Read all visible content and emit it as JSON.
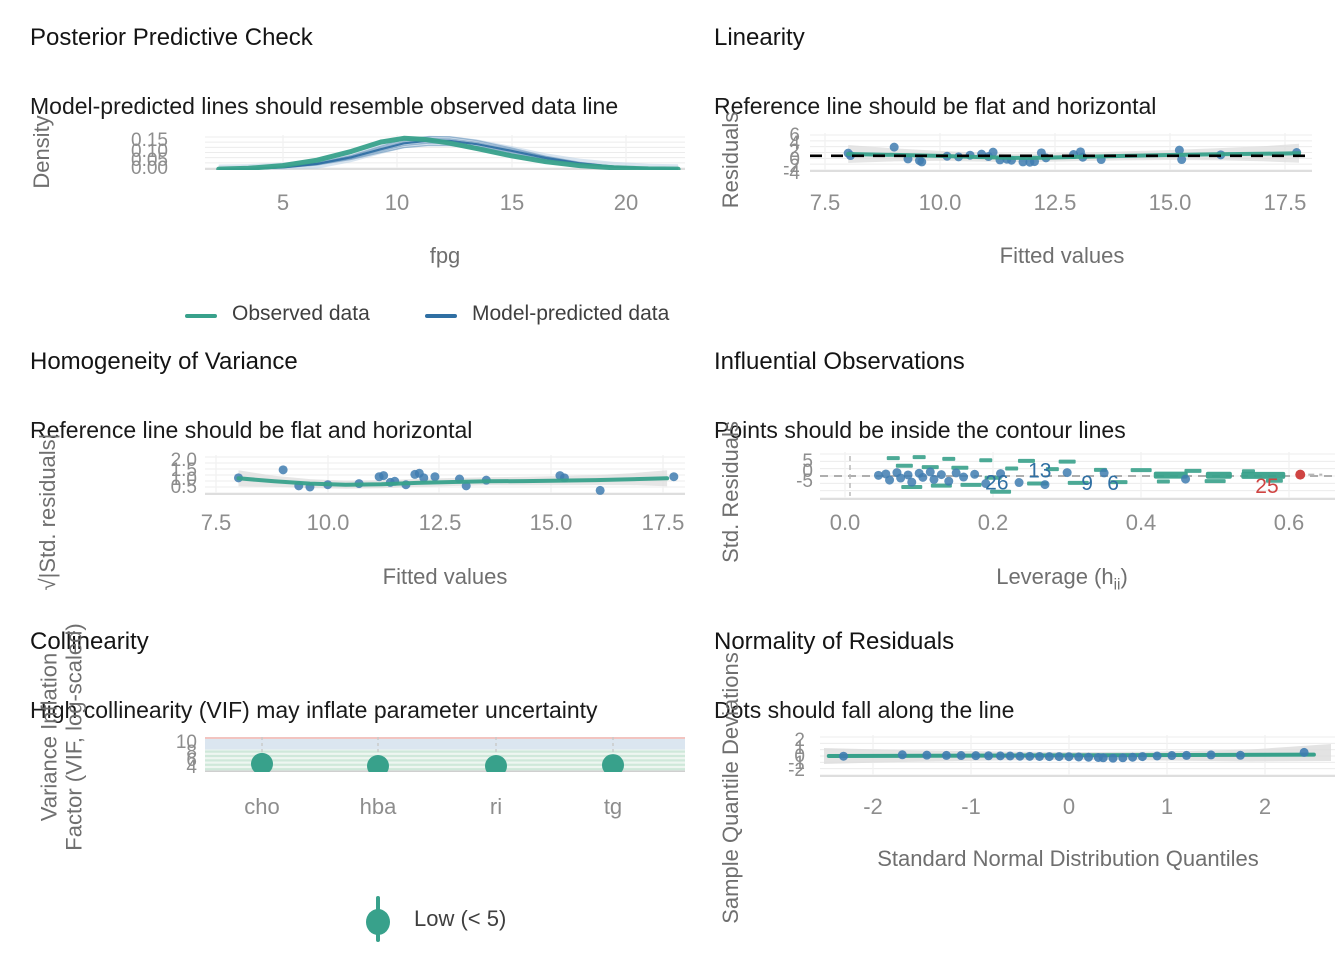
{
  "colors": {
    "green": "#38a18b",
    "blue": "#3f7cb0",
    "blue_dark": "#2f6fa3",
    "blue_light": "#b9cfe4",
    "red": "#cf4442",
    "grid": "#ececec",
    "ribbon": "#dcdcdc",
    "band_red": "#f2c4c0",
    "band_blue": "#dbe6f0",
    "band_green": "#cfe8da"
  },
  "chart_data": [
    {
      "id": "posterior-predictive-check",
      "type": "area",
      "title": "Posterior Predictive Check",
      "subtitle": "Model-predicted lines should resemble observed data line",
      "xlabel": "fpg",
      "ylabel": "Density",
      "xticks": [
        "5",
        "10",
        "15",
        "20"
      ],
      "yticks": [
        "0.15",
        "0.10",
        "0.05",
        "0.00"
      ],
      "xlim": [
        1.6,
        22.6
      ],
      "ylim": [
        0,
        0.16
      ],
      "ribbon_halfwidth": 0.022,
      "series": [
        {
          "name": "Observed data",
          "color": "#38a18b",
          "x": [
            2.2,
            3.5,
            5,
            6.5,
            8,
            9.3,
            10.3,
            11.2,
            12.2,
            13.5,
            15,
            16.5,
            18,
            19.5,
            21,
            22.3
          ],
          "y": [
            0.004,
            0.008,
            0.02,
            0.045,
            0.085,
            0.128,
            0.145,
            0.14,
            0.125,
            0.098,
            0.065,
            0.038,
            0.02,
            0.01,
            0.005,
            0.004
          ]
        },
        {
          "name": "Model-predicted data",
          "color": "#2f6fa3",
          "x": [
            2.2,
            3.5,
            5,
            6.5,
            8,
            9.3,
            10.3,
            11.4,
            12.3,
            13.5,
            15,
            16.5,
            18,
            19.5,
            21,
            22.3
          ],
          "y": [
            0.003,
            0.005,
            0.012,
            0.028,
            0.058,
            0.095,
            0.122,
            0.134,
            0.133,
            0.118,
            0.088,
            0.055,
            0.03,
            0.015,
            0.007,
            0.004
          ]
        }
      ]
    },
    {
      "id": "linearity",
      "type": "scatter",
      "title": "Linearity",
      "subtitle": "Reference line should be flat and horizontal",
      "xlabel": "Fitted values",
      "ylabel": "Residuals",
      "xticks": [
        "7.5",
        "10.0",
        "12.5",
        "15.0",
        "17.5"
      ],
      "yticks": [
        "6",
        "4",
        "2",
        "0",
        "-2",
        "-4"
      ],
      "xlim": [
        7.17,
        18.08
      ],
      "ylim": [
        -4.8,
        6.8
      ],
      "reference_y": 0,
      "smooth": [
        [
          8,
          0.55
        ],
        [
          9,
          0.3
        ],
        [
          10,
          0
        ],
        [
          10.8,
          -0.35
        ],
        [
          11.6,
          -0.6
        ],
        [
          12.2,
          -0.55
        ],
        [
          13,
          -0.3
        ],
        [
          14,
          0
        ],
        [
          15,
          0.25
        ],
        [
          16,
          0.45
        ],
        [
          17,
          0.6
        ],
        [
          17.8,
          0.75
        ]
      ],
      "points": [
        [
          8,
          0.8
        ],
        [
          8.05,
          0.1
        ],
        [
          9,
          2.6
        ],
        [
          9.3,
          -0.9
        ],
        [
          9.55,
          -1.4
        ],
        [
          9.6,
          -1.8
        ],
        [
          10.15,
          -0.1
        ],
        [
          10.4,
          -0.3
        ],
        [
          10.65,
          0.2
        ],
        [
          10.9,
          0.5
        ],
        [
          11.05,
          -0.2
        ],
        [
          11.15,
          1.1
        ],
        [
          11.3,
          -1.2
        ],
        [
          11.45,
          -1
        ],
        [
          11.55,
          -1.3
        ],
        [
          11.8,
          -1.8
        ],
        [
          11.95,
          -1.9
        ],
        [
          12.05,
          -1.7
        ],
        [
          12.2,
          0.9
        ],
        [
          12.3,
          -0.6
        ],
        [
          12.9,
          0.4
        ],
        [
          13.05,
          1.2
        ],
        [
          13.1,
          -0.4
        ],
        [
          13.5,
          -1.1
        ],
        [
          15.2,
          1.7
        ],
        [
          15.25,
          -1.1
        ],
        [
          16.1,
          0.3
        ],
        [
          17.75,
          1
        ]
      ]
    },
    {
      "id": "homogeneity-of-variance",
      "type": "scatter",
      "title": "Homogeneity of Variance",
      "subtitle": "Reference line should be flat and horizontal",
      "xlabel": "Fitted values",
      "ylabel": "√|Std. residuals|",
      "xticks": [
        "7.5",
        "10.0",
        "12.5",
        "15.0",
        "17.5"
      ],
      "yticks": [
        "2.0",
        "1.5",
        "1.0",
        "0.5"
      ],
      "xlim": [
        7.25,
        18.0
      ],
      "ylim": [
        0.35,
        2.1
      ],
      "smooth": [
        [
          8,
          1.08
        ],
        [
          8.8,
          0.95
        ],
        [
          9.6,
          0.85
        ],
        [
          10.4,
          0.8
        ],
        [
          11.2,
          0.82
        ],
        [
          12,
          0.88
        ],
        [
          12.8,
          0.92
        ],
        [
          13.6,
          0.95
        ],
        [
          14.4,
          0.96
        ],
        [
          15.2,
          0.98
        ],
        [
          16,
          1
        ],
        [
          16.8,
          1.04
        ],
        [
          17.6,
          1.08
        ]
      ],
      "points": [
        [
          8,
          1.1
        ],
        [
          9,
          1.45
        ],
        [
          9.35,
          0.75
        ],
        [
          9.6,
          0.7
        ],
        [
          10,
          0.8
        ],
        [
          10.7,
          0.85
        ],
        [
          11.15,
          1.15
        ],
        [
          11.25,
          1.2
        ],
        [
          11.4,
          0.9
        ],
        [
          11.5,
          0.95
        ],
        [
          11.75,
          0.8
        ],
        [
          11.95,
          1.25
        ],
        [
          12.05,
          1.3
        ],
        [
          12.15,
          1.1
        ],
        [
          12.4,
          1.15
        ],
        [
          12.95,
          1.05
        ],
        [
          13.1,
          0.75
        ],
        [
          13.55,
          1
        ],
        [
          15.2,
          1.2
        ],
        [
          15.3,
          1.1
        ],
        [
          16.1,
          0.55
        ],
        [
          17.75,
          1.15
        ]
      ]
    },
    {
      "id": "influential-observations",
      "type": "scatter",
      "title": "Influential Observations",
      "subtitle": "Points should be inside the contour lines",
      "xlabel": "Leverage (h",
      "xlabel_sub": "ii",
      "xlabel_close": ")",
      "ylabel": "Std. Residuals",
      "xticks": [
        "0.0",
        "0.2",
        "0.4",
        "0.6"
      ],
      "yticks": [
        "5",
        "0",
        "-5"
      ],
      "xlim": [
        -0.034,
        0.665
      ],
      "ylim": [
        -7,
        7
      ],
      "points": [
        [
          0.045,
          0.2
        ],
        [
          0.055,
          0.6
        ],
        [
          0.06,
          -1.2
        ],
        [
          0.07,
          1
        ],
        [
          0.075,
          -0.6
        ],
        [
          0.085,
          0.3
        ],
        [
          0.09,
          -1.8
        ],
        [
          0.1,
          0.8
        ],
        [
          0.105,
          -0.4
        ],
        [
          0.115,
          1.2
        ],
        [
          0.12,
          -1
        ],
        [
          0.13,
          0.4
        ],
        [
          0.14,
          -1.5
        ],
        [
          0.15,
          0.9
        ],
        [
          0.16,
          -0.3
        ],
        [
          0.175,
          0.5
        ],
        [
          0.19,
          -2.2
        ],
        [
          0.21,
          0.7
        ],
        [
          0.235,
          -1.9
        ],
        [
          0.27,
          -2.5
        ],
        [
          0.3,
          1
        ],
        [
          0.35,
          0.9
        ],
        [
          0.46,
          -0.9
        ]
      ],
      "contour_dashes": [
        [
          0.065,
          5.2
        ],
        [
          0.08,
          3
        ],
        [
          0.09,
          -3.2
        ],
        [
          0.1,
          5.5
        ],
        [
          0.115,
          2.6
        ],
        [
          0.13,
          -2.8
        ],
        [
          0.14,
          5
        ],
        [
          0.155,
          2.4
        ],
        [
          0.17,
          -2.6
        ],
        [
          0.19,
          4.6
        ],
        [
          0.2,
          -0.5
        ],
        [
          0.21,
          -4.6
        ],
        [
          0.225,
          2.2
        ],
        [
          0.245,
          4.4
        ],
        [
          0.26,
          -2.2
        ],
        [
          0.28,
          2
        ],
        [
          0.3,
          4.2
        ],
        [
          0.315,
          -2
        ],
        [
          0.345,
          1.8
        ],
        [
          0.37,
          -1.8
        ],
        [
          0.4,
          1.7
        ],
        [
          0.43,
          -1.6
        ],
        [
          0.47,
          1.5
        ],
        [
          0.5,
          -1.5
        ],
        [
          0.545,
          1.4
        ],
        [
          0.58,
          -1.4
        ]
      ],
      "solid_segments": [
        [
          0.44,
          0.25,
          34
        ],
        [
          0.505,
          0.22,
          26
        ],
        [
          0.565,
          0.2,
          44
        ]
      ],
      "point_labels": [
        {
          "label": "26",
          "x": 0.205,
          "y": -1.9
        },
        {
          "label": "13",
          "x": 0.263,
          "y": 1.6
        },
        {
          "label": "9",
          "x": 0.327,
          "y": -2.1
        },
        {
          "label": "6",
          "x": 0.362,
          "y": -2.1
        }
      ],
      "outlier": {
        "label": "25",
        "x": 0.57,
        "y": -2.9,
        "point_x": 0.615,
        "point_y": 0.4
      }
    },
    {
      "id": "collinearity",
      "type": "dotplot",
      "title": "Collinearity",
      "subtitle": "High collinearity (VIF) may inflate parameter uncertainty",
      "ylabel_line1": "Variance Inflation",
      "ylabel_line2": "Factor (VIF, log-scaled)",
      "categories": [
        "cho",
        "hba",
        "ri",
        "tg"
      ],
      "vif": [
        2.7,
        2.0,
        2.0,
        2.3
      ],
      "yticks": [
        "10",
        "8",
        "6",
        "4"
      ],
      "legend": {
        "label": "Low (< 5)"
      }
    },
    {
      "id": "normality-of-residuals",
      "type": "qq",
      "title": "Normality of Residuals",
      "subtitle": "Dots should fall along the line",
      "xlabel": "Standard Normal Distribution Quantiles",
      "ylabel": "Sample Quantile Deviations",
      "xticks": [
        "-2",
        "-1",
        "0",
        "1",
        "2"
      ],
      "yticks": [
        "2",
        "1",
        "0",
        "-1",
        "-2"
      ],
      "xlim": [
        -2.54,
        2.71
      ],
      "ylim": [
        -2.5,
        2.5
      ],
      "line": [
        [
          -2.45,
          0
        ],
        [
          2.5,
          0.12
        ]
      ],
      "points": [
        [
          -2.3,
          -0.02
        ],
        [
          -1.7,
          0.1
        ],
        [
          -1.45,
          0.07
        ],
        [
          -1.25,
          0.05
        ],
        [
          -1.1,
          0.04
        ],
        [
          -0.95,
          0.03
        ],
        [
          -0.82,
          0.02
        ],
        [
          -0.7,
          0.01
        ],
        [
          -0.6,
          0
        ],
        [
          -0.5,
          -0.02
        ],
        [
          -0.4,
          -0.03
        ],
        [
          -0.3,
          -0.04
        ],
        [
          -0.2,
          -0.05
        ],
        [
          -0.1,
          -0.05
        ],
        [
          0,
          -0.06
        ],
        [
          0.1,
          -0.08
        ],
        [
          0.2,
          -0.1
        ],
        [
          0.3,
          -0.12
        ],
        [
          0.35,
          -0.15
        ],
        [
          0.45,
          -0.18
        ],
        [
          0.55,
          -0.15
        ],
        [
          0.65,
          -0.1
        ],
        [
          0.75,
          -0.05
        ],
        [
          0.9,
          0
        ],
        [
          1.05,
          0.04
        ],
        [
          1.2,
          0.05
        ],
        [
          1.45,
          0.09
        ],
        [
          1.75,
          0.06
        ],
        [
          2.4,
          0.3
        ]
      ]
    }
  ]
}
